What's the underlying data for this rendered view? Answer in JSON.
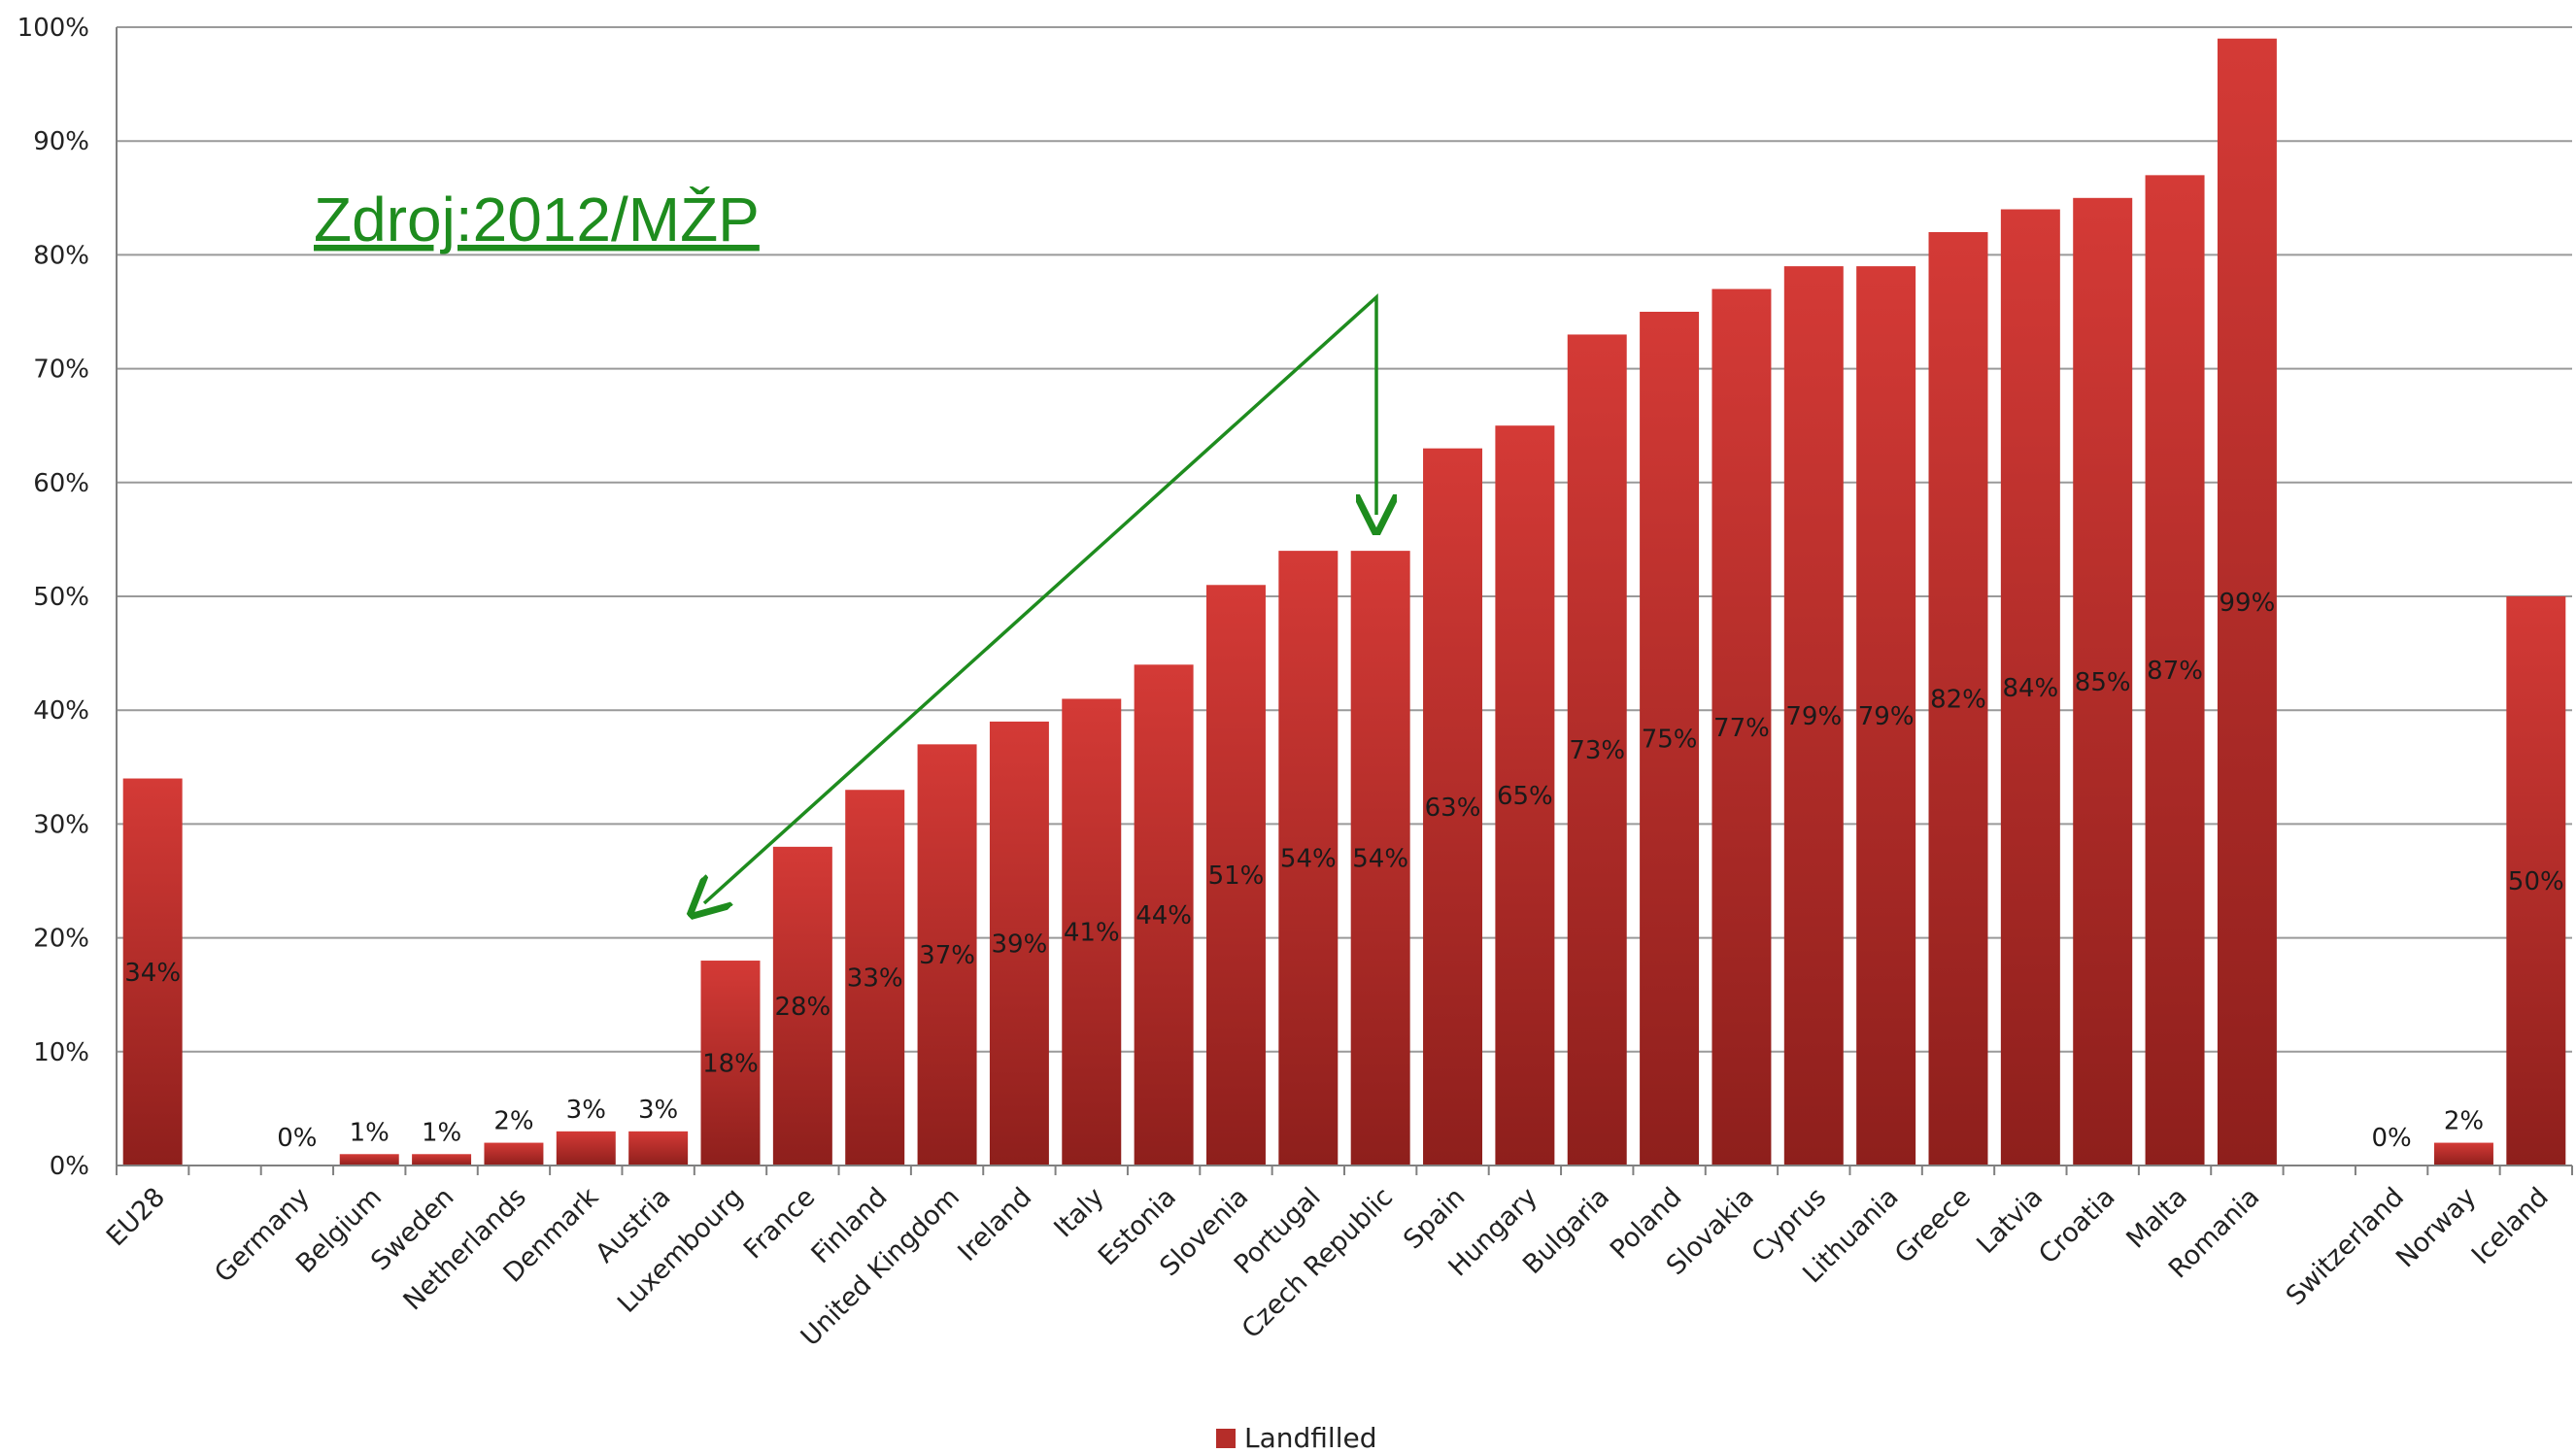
{
  "chart_data": {
    "type": "bar",
    "categories": [
      "EU28",
      "",
      "Germany",
      "Belgium",
      "Sweden",
      "Netherlands",
      "Denmark",
      "Austria",
      "Luxembourg",
      "France",
      "Finland",
      "United Kingdom",
      "Ireland",
      "Italy",
      "Estonia",
      "Slovenia",
      "Portugal",
      "Czech Republic",
      "Spain",
      "Hungary",
      "Bulgaria",
      "Poland",
      "Slovakia",
      "Cyprus",
      "Lithuania",
      "Greece",
      "Latvia",
      "Croatia",
      "Malta",
      "Romania",
      "",
      "Switzerland",
      "Norway",
      "Iceland"
    ],
    "series": [
      {
        "name": "Landfilled",
        "values": [
          34,
          null,
          0,
          1,
          1,
          2,
          3,
          3,
          18,
          28,
          33,
          37,
          39,
          41,
          44,
          51,
          54,
          54,
          63,
          65,
          73,
          75,
          77,
          79,
          79,
          82,
          84,
          85,
          87,
          99,
          null,
          0,
          2,
          50
        ],
        "labels": [
          "34%",
          "",
          "0%",
          "1%",
          "1%",
          "2%",
          "3%",
          "3%",
          "18%",
          "28%",
          "33%",
          "37%",
          "39%",
          "41%",
          "44%",
          "51%",
          "54%",
          "54%",
          "63%",
          "65%",
          "73%",
          "75%",
          "77%",
          "79%",
          "79%",
          "82%",
          "84%",
          "85%",
          "87%",
          "99%",
          "",
          "0%",
          "2%",
          "50%"
        ]
      }
    ],
    "ylim": [
      0,
      100
    ],
    "yticks": [
      "0%",
      "10%",
      "20%",
      "30%",
      "40%",
      "50%",
      "60%",
      "70%",
      "80%",
      "90%",
      "100%"
    ],
    "grid": true,
    "legend_position": "bottom-center",
    "annotation": "Zdroj:2012/MŽP",
    "colors": {
      "bar_top": "#d43a36",
      "bar_bottom": "#8e1f1c",
      "grid": "#9a9a9a",
      "annotation": "#1e8c1e"
    }
  }
}
